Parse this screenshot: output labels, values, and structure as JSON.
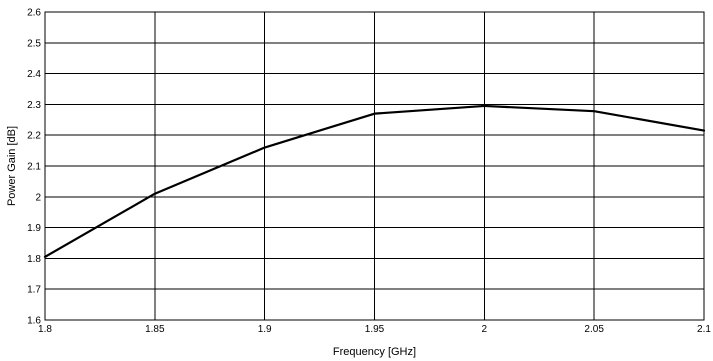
{
  "chart_data": {
    "type": "line",
    "xlabel": "Frequency [GHz]",
    "ylabel": "Power Gain [dB]",
    "xlim": [
      1.8,
      2.1
    ],
    "ylim": [
      1.6,
      2.6
    ],
    "grid": true,
    "x_ticks": [
      "1.8",
      "1.85",
      "1.9",
      "1.95",
      "2",
      "2.05",
      "2.1"
    ],
    "y_ticks": [
      "1.6",
      "1.7",
      "1.8",
      "1.9",
      "2",
      "2.1",
      "2.2",
      "2.3",
      "2.4",
      "2.5",
      "2.6"
    ],
    "series": [
      {
        "x": [
          1.8,
          1.85,
          1.9,
          1.95,
          2.0,
          2.05,
          2.1
        ],
        "y": [
          1.805,
          2.01,
          2.16,
          2.27,
          2.295,
          2.278,
          2.215
        ]
      }
    ]
  }
}
